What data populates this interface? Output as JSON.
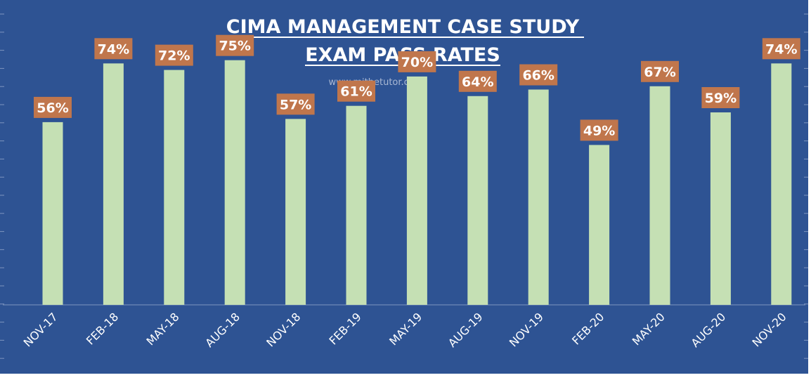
{
  "chart_data": {
    "type": "bar",
    "title_line1": "CIMA MANAGEMENT CASE STUDY",
    "title_line2": "EXAM PASS RATES",
    "watermark": "www.mjthetutor.com",
    "categories": [
      "NOV-17",
      "FEB-18",
      "MAY-18",
      "AUG-18",
      "NOV-18",
      "FEB-19",
      "MAY-19",
      "AUG-19",
      "NOV-19",
      "FEB-20",
      "MAY-20",
      "AUG-20",
      "NOV-20"
    ],
    "values": [
      56,
      74,
      72,
      75,
      57,
      61,
      70,
      64,
      66,
      49,
      67,
      59,
      74
    ],
    "data_labels": [
      "56%",
      "74%",
      "72%",
      "75%",
      "57%",
      "61%",
      "70%",
      "64%",
      "66%",
      "49%",
      "67%",
      "59%",
      "74%"
    ],
    "ylim": [
      0,
      90
    ],
    "grid": false,
    "colors": {
      "background": "#2E5393",
      "bar": "#C5E0B4",
      "label_box": "#C0764C",
      "text": "#FFFFFF",
      "watermark": "#A9B8D4"
    }
  }
}
